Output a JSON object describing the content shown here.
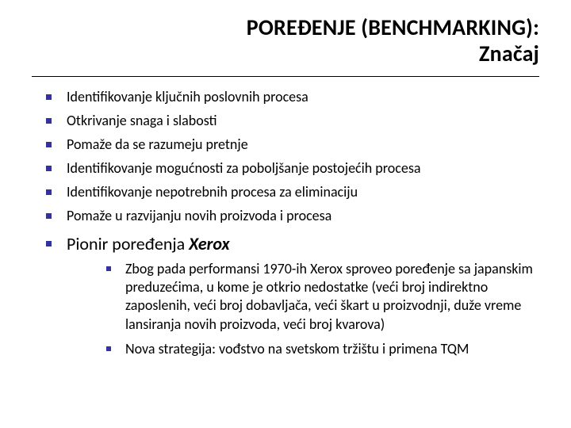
{
  "title": {
    "line1": "POREĐENJE (BENCHMARKING):",
    "line2": "Značaj"
  },
  "bullets": [
    "Identifikovanje ključnih poslovnih procesa",
    "Otkrivanje snaga i slabosti",
    "Pomaže da se razumeju pretnje",
    "Identifikovanje mogućnosti za poboljšanje postojećih procesa",
    "Identifikovanje nepotrebnih procesa za eliminaciju",
    "Pomaže u razvijanju novih proizvoda i procesa"
  ],
  "pioneer": {
    "prefix": "Pionir poređenja ",
    "name": "Xerox"
  },
  "sub_bullets": [
    "Zbog pada performansi 1970-ih Xerox sproveo poređenje sa japanskim preduzećima, u kome je otkrio nedostatke (veći broj indirektno zaposlenih, veći broj dobavljača, veći škart u proizvodnji, duže vreme lansiranja novih proizvoda, veći broj kvarova)",
    "Nova strategija: vođstvo na svetskom tržištu i primena TQM"
  ],
  "style": {
    "bullet_color": "#333399",
    "text_color": "#000000",
    "background": "#ffffff",
    "title_fontsize": 28,
    "body_fontsize": 18,
    "pioneer_fontsize": 22
  }
}
